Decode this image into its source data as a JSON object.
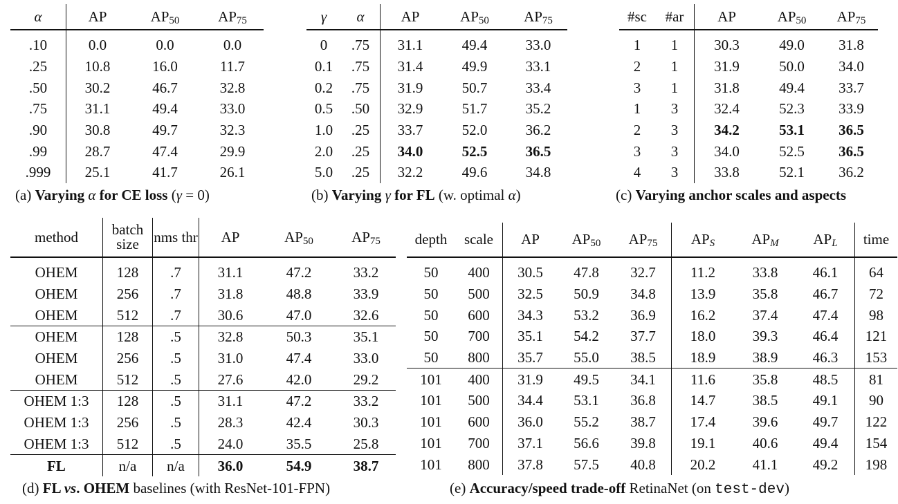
{
  "tables": [
    {
      "id": "a",
      "headers": [
        {
          "t": "α",
          "it": true
        },
        {
          "t": "AP"
        },
        {
          "t": "AP",
          "sub": "50"
        },
        {
          "t": "AP",
          "sub": "75"
        }
      ],
      "rows": [
        [
          ".10",
          "0.0",
          "0.0",
          "0.0"
        ],
        [
          ".25",
          "10.8",
          "16.0",
          "11.7"
        ],
        [
          ".50",
          "30.2",
          "46.7",
          "32.8"
        ],
        [
          ".75",
          "31.1",
          "49.4",
          "33.0"
        ],
        [
          ".90",
          "30.8",
          "49.7",
          "32.3"
        ],
        [
          ".99",
          "28.7",
          "47.4",
          "29.9"
        ],
        [
          ".999",
          "25.1",
          "41.7",
          "26.1"
        ]
      ],
      "bold": [],
      "caption": [
        {
          "t": "(a) "
        },
        {
          "t": "Varying ",
          "s": "bold"
        },
        {
          "t": "α",
          "s": "it"
        },
        {
          "t": " for CE loss",
          "s": "bold"
        },
        {
          "t": " ("
        },
        {
          "t": "γ",
          "s": "it"
        },
        {
          "t": " = 0)"
        }
      ]
    },
    {
      "id": "b",
      "headers": [
        {
          "t": "γ",
          "it": true
        },
        {
          "t": "α",
          "it": true
        },
        {
          "t": "AP"
        },
        {
          "t": "AP",
          "sub": "50"
        },
        {
          "t": "AP",
          "sub": "75"
        }
      ],
      "rows": [
        [
          "0",
          ".75",
          "31.1",
          "49.4",
          "33.0"
        ],
        [
          "0.1",
          ".75",
          "31.4",
          "49.9",
          "33.1"
        ],
        [
          "0.2",
          ".75",
          "31.9",
          "50.7",
          "33.4"
        ],
        [
          "0.5",
          ".50",
          "32.9",
          "51.7",
          "35.2"
        ],
        [
          "1.0",
          ".25",
          "33.7",
          "52.0",
          "36.2"
        ],
        [
          "2.0",
          ".25",
          "34.0",
          "52.5",
          "36.5"
        ],
        [
          "5.0",
          ".25",
          "32.2",
          "49.6",
          "34.8"
        ]
      ],
      "bold": [
        [
          5,
          2
        ],
        [
          5,
          3
        ],
        [
          5,
          4
        ]
      ],
      "caption": [
        {
          "t": "(b) "
        },
        {
          "t": "Varying ",
          "s": "bold"
        },
        {
          "t": "γ",
          "s": "it"
        },
        {
          "t": " for FL",
          "s": "bold"
        },
        {
          "t": " (w. optimal "
        },
        {
          "t": "α",
          "s": "it"
        },
        {
          "t": ")"
        }
      ]
    },
    {
      "id": "c",
      "headers": [
        {
          "t": "#sc"
        },
        {
          "t": "#ar"
        },
        {
          "t": "AP"
        },
        {
          "t": "AP",
          "sub": "50"
        },
        {
          "t": "AP",
          "sub": "75"
        }
      ],
      "rows": [
        [
          "1",
          "1",
          "30.3",
          "49.0",
          "31.8"
        ],
        [
          "2",
          "1",
          "31.9",
          "50.0",
          "34.0"
        ],
        [
          "3",
          "1",
          "31.8",
          "49.4",
          "33.7"
        ],
        [
          "1",
          "3",
          "32.4",
          "52.3",
          "33.9"
        ],
        [
          "2",
          "3",
          "34.2",
          "53.1",
          "36.5"
        ],
        [
          "3",
          "3",
          "34.0",
          "52.5",
          "36.5"
        ],
        [
          "4",
          "3",
          "33.8",
          "52.1",
          "36.2"
        ]
      ],
      "bold": [
        [
          4,
          2
        ],
        [
          4,
          3
        ],
        [
          4,
          4
        ],
        [
          5,
          4
        ]
      ],
      "caption": [
        {
          "t": "(c) "
        },
        {
          "t": "Varying anchor scales and aspects",
          "s": "bold"
        }
      ]
    },
    {
      "id": "d",
      "headers": [
        {
          "t": "method"
        },
        {
          "t": "batch size"
        },
        {
          "t": "nms thr"
        },
        {
          "t": "AP"
        },
        {
          "t": "AP",
          "sub": "50"
        },
        {
          "t": "AP",
          "sub": "75"
        }
      ],
      "rows": [
        [
          "OHEM",
          "128",
          ".7",
          "31.1",
          "47.2",
          "33.2"
        ],
        [
          "OHEM",
          "256",
          ".7",
          "31.8",
          "48.8",
          "33.9"
        ],
        [
          "OHEM",
          "512",
          ".7",
          "30.6",
          "47.0",
          "32.6"
        ],
        [
          "OHEM",
          "128",
          ".5",
          "32.8",
          "50.3",
          "35.1"
        ],
        [
          "OHEM",
          "256",
          ".5",
          "31.0",
          "47.4",
          "33.0"
        ],
        [
          "OHEM",
          "512",
          ".5",
          "27.6",
          "42.0",
          "29.2"
        ],
        [
          "OHEM 1:3",
          "128",
          ".5",
          "31.1",
          "47.2",
          "33.2"
        ],
        [
          "OHEM 1:3",
          "256",
          ".5",
          "28.3",
          "42.4",
          "30.3"
        ],
        [
          "OHEM 1:3",
          "512",
          ".5",
          "24.0",
          "35.5",
          "25.8"
        ],
        [
          "FL",
          "n/a",
          "n/a",
          "36.0",
          "54.9",
          "38.7"
        ]
      ],
      "bold": [
        [
          9,
          0
        ],
        [
          9,
          3
        ],
        [
          9,
          4
        ],
        [
          9,
          5
        ]
      ],
      "caption": [
        {
          "t": "(d) "
        },
        {
          "t": "FL ",
          "s": "bold"
        },
        {
          "t": "vs",
          "s": "bi"
        },
        {
          "t": ". OHEM",
          "s": "bold"
        },
        {
          "t": " baselines (with ResNet-101-FPN)"
        }
      ]
    },
    {
      "id": "e",
      "headers": [
        {
          "t": "depth"
        },
        {
          "t": "scale"
        },
        {
          "t": "AP"
        },
        {
          "t": "AP",
          "sub": "50"
        },
        {
          "t": "AP",
          "sub": "75"
        },
        {
          "t": "AP",
          "sub": "S",
          "subit": true
        },
        {
          "t": "AP",
          "sub": "M",
          "subit": true
        },
        {
          "t": "AP",
          "sub": "L",
          "subit": true
        },
        {
          "t": "time"
        }
      ],
      "rows": [
        [
          "50",
          "400",
          "30.5",
          "47.8",
          "32.7",
          "11.2",
          "33.8",
          "46.1",
          "64"
        ],
        [
          "50",
          "500",
          "32.5",
          "50.9",
          "34.8",
          "13.9",
          "35.8",
          "46.7",
          "72"
        ],
        [
          "50",
          "600",
          "34.3",
          "53.2",
          "36.9",
          "16.2",
          "37.4",
          "47.4",
          "98"
        ],
        [
          "50",
          "700",
          "35.1",
          "54.2",
          "37.7",
          "18.0",
          "39.3",
          "46.4",
          "121"
        ],
        [
          "50",
          "800",
          "35.7",
          "55.0",
          "38.5",
          "18.9",
          "38.9",
          "46.3",
          "153"
        ],
        [
          "101",
          "400",
          "31.9",
          "49.5",
          "34.1",
          "11.6",
          "35.8",
          "48.5",
          "81"
        ],
        [
          "101",
          "500",
          "34.4",
          "53.1",
          "36.8",
          "14.7",
          "38.5",
          "49.1",
          "90"
        ],
        [
          "101",
          "600",
          "36.0",
          "55.2",
          "38.7",
          "17.4",
          "39.6",
          "49.7",
          "122"
        ],
        [
          "101",
          "700",
          "37.1",
          "56.6",
          "39.8",
          "19.1",
          "40.6",
          "49.4",
          "154"
        ],
        [
          "101",
          "800",
          "37.8",
          "57.5",
          "40.8",
          "20.2",
          "41.1",
          "49.2",
          "198"
        ]
      ],
      "bold": [],
      "caption": [
        {
          "t": "(e) "
        },
        {
          "t": "Accuracy/speed trade-off",
          "s": "bold"
        },
        {
          "t": " RetinaNet (on "
        },
        {
          "t": "test-dev",
          "s": "mono"
        },
        {
          "t": ")"
        }
      ]
    }
  ]
}
